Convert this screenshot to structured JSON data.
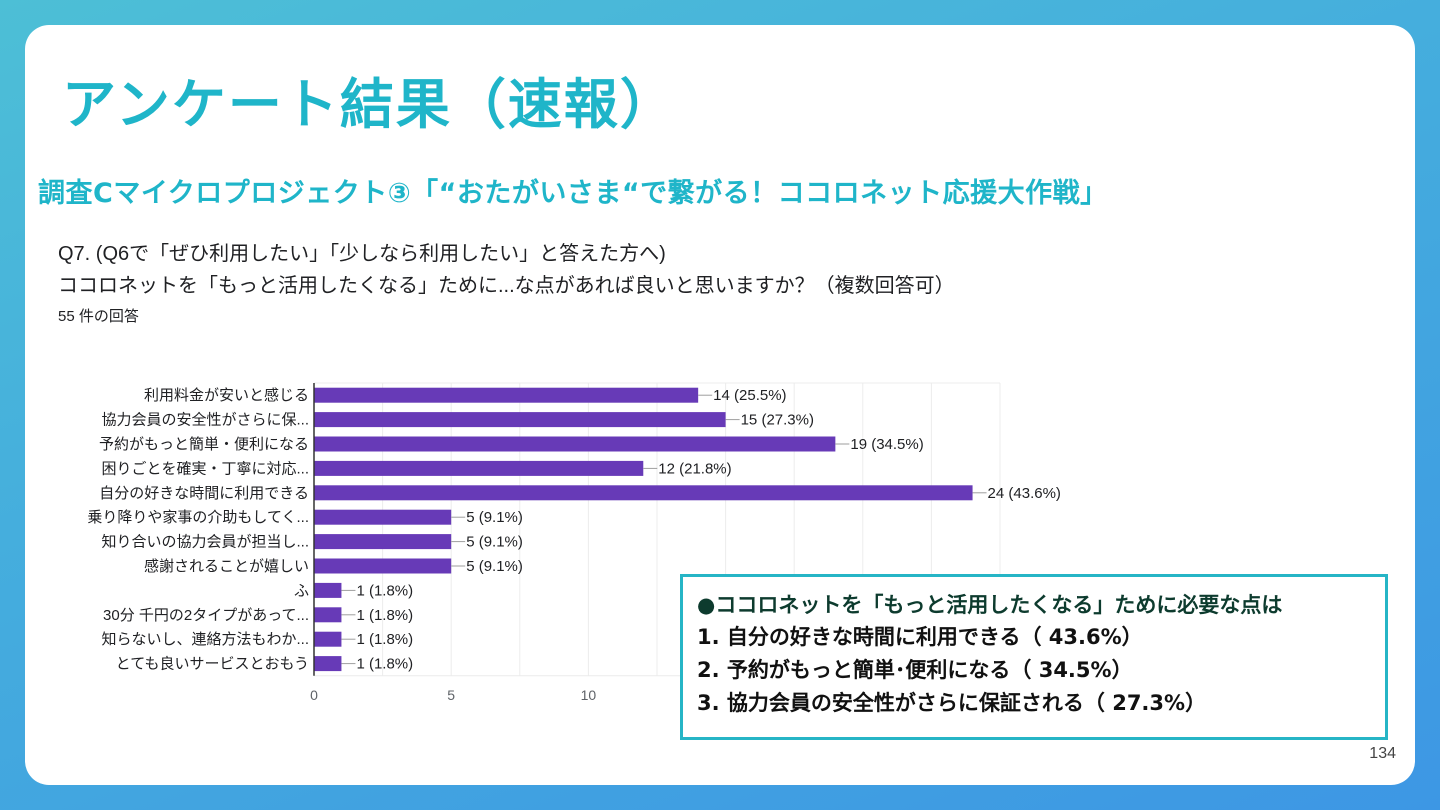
{
  "slide": {
    "title": "アンケート結果（速報）",
    "subtitle": "調査Cマイクロプロジェクト③「“おたがいさま“で繋がる！ココロネット応援大作戦」",
    "page_number": "134"
  },
  "question": {
    "line1": "Q7. (Q6で「ぜひ利用したい」「少しなら利用したい」と答えた方へ)",
    "line2": "ココロネットを「もっと活用したくなる」ために...な点があれば良いと思いますか？（複数回答可）",
    "response_count": "55 件の回答"
  },
  "colors": {
    "bar": "#673ab7",
    "accent": "#1fb5c9",
    "summary_border": "#26b5c6",
    "summary_head": "#0d3b2e"
  },
  "chart_data": {
    "type": "bar",
    "orientation": "horizontal",
    "title": "",
    "xlabel": "",
    "ylabel": "",
    "categories": [
      "利用料金が安いと感じる",
      "協力会員の安全性がさらに保...",
      "予約がもっと簡単・便利になる",
      "困りごとを確実・丁寧に対応...",
      "自分の好きな時間に利用できる",
      "乗り降りや家事の介助もしてく...",
      "知り合いの協力会員が担当し...",
      "感謝されることが嬉しい",
      "ふ",
      "30分 千円の2タイプがあって...",
      "知らないし、連絡方法もわか...",
      "とても良いサービスとおもう"
    ],
    "values": [
      14,
      15,
      19,
      12,
      24,
      5,
      5,
      5,
      1,
      1,
      1,
      1
    ],
    "data_labels": [
      "14 (25.5%)",
      "15 (27.3%)",
      "19 (34.5%)",
      "12 (21.8%)",
      "24 (43.6%)",
      "5 (9.1%)",
      "5 (9.1%)",
      "5 (9.1%)",
      "1 (1.8%)",
      "1 (1.8%)",
      "1 (1.8%)",
      "1 (1.8%)"
    ],
    "xlim": [
      0,
      25
    ],
    "x_ticks": [
      "0",
      "5",
      "10",
      "15",
      "20",
      "25"
    ],
    "grid": true,
    "minor_grid_step": 2.5
  },
  "summary": {
    "heading": "●ココロネットを「もっと活用したくなる」ために必要な点は",
    "items": [
      "1. 自分の好きな時間に利用できる（ 43.6%）",
      "2. 予約がもっと簡単･便利になる（ 34.5%）",
      "3. 協力会員の安全性がさらに保証される（ 27.3%）"
    ]
  }
}
